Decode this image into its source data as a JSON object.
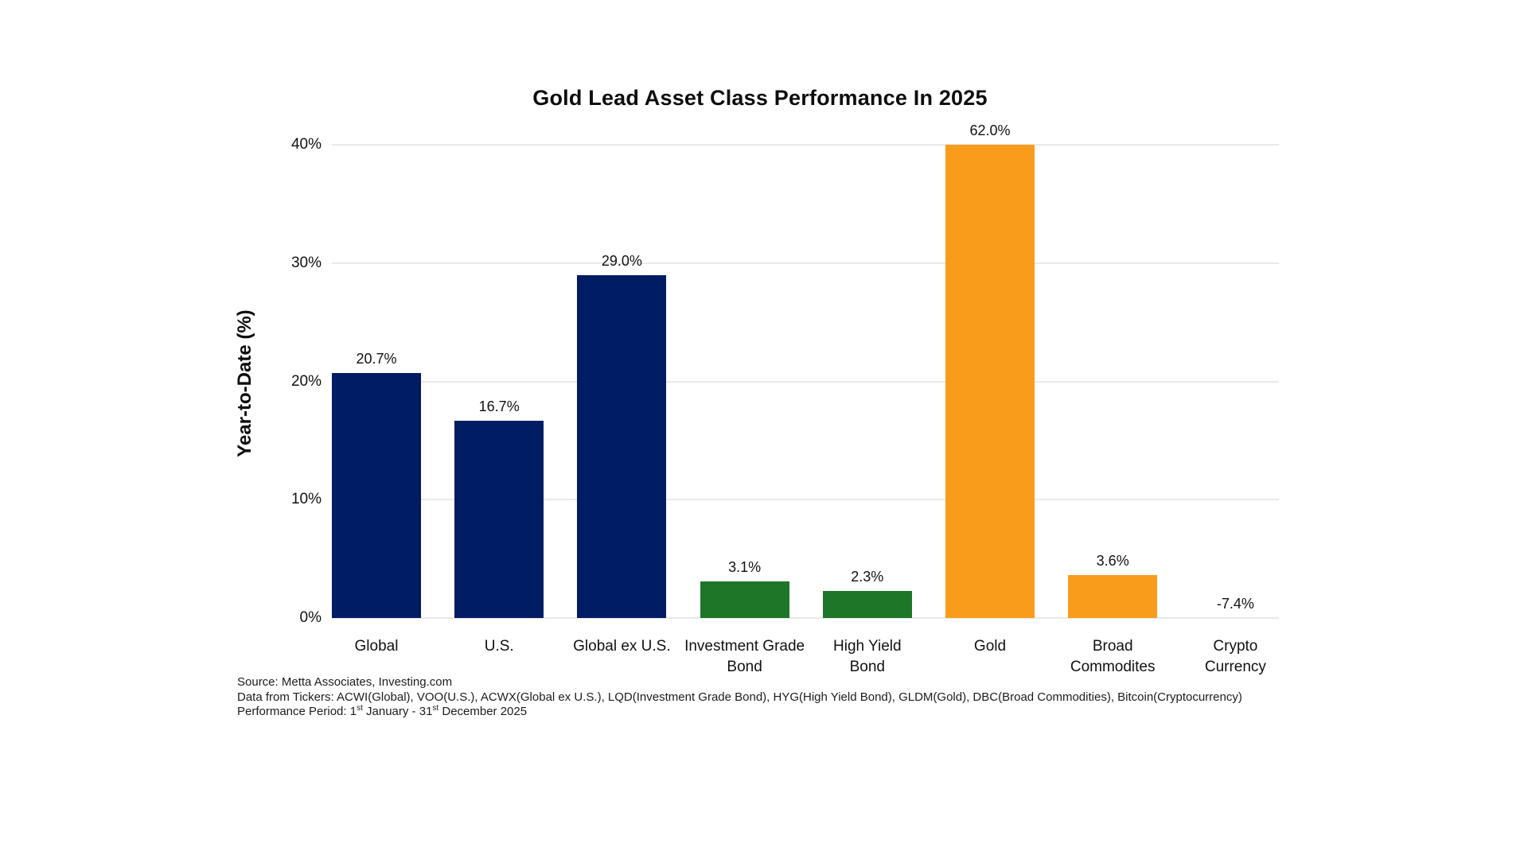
{
  "chart_data": {
    "type": "bar",
    "title": "Gold Lead Asset Class Performance In 2025",
    "xlabel": "",
    "ylabel": "Year-to-Date (%)",
    "ylim": [
      0,
      40
    ],
    "yticks": [
      0,
      10,
      20,
      30,
      40
    ],
    "ytick_labels": [
      "0%",
      "10%",
      "20%",
      "30%",
      "40%"
    ],
    "grid": true,
    "legend_position": "none",
    "categories": [
      "Global",
      "U.S.",
      "Global ex U.S.",
      "Investment Grade\nBond",
      "High Yield\nBond",
      "Gold",
      "Broad\nCommodites",
      "Crypto\nCurrency"
    ],
    "values": [
      20.7,
      16.7,
      29.0,
      3.1,
      2.3,
      62.0,
      3.6,
      -7.4
    ],
    "value_labels": [
      "20.7%",
      "16.7%",
      "29.0%",
      "3.1%",
      "2.3%",
      "62.0%",
      "3.6%",
      "-7.4%"
    ],
    "bar_colors": [
      "#001c63",
      "#001c63",
      "#001c63",
      "#1e7629",
      "#1e7629",
      "#fa9c1b",
      "#fa9c1b",
      "#fa9c1b"
    ],
    "clipped_note": "Gold bar clipped at 40% axis maximum; Crypto Currency negative bar not drawn below baseline"
  },
  "colors": {
    "navy": "#001c63",
    "green": "#1e7629",
    "orange": "#fa9c1b",
    "gridline": "#e9e9e9",
    "text": "#111111"
  },
  "footer": {
    "line1": "Source: Metta Associates, Investing.com",
    "line2": "Data from Tickers: ACWI(Global), VOO(U.S.), ACWX(Global ex U.S.), LQD(Investment Grade Bond), HYG(High Yield Bond), GLDM(Gold), DBC(Broad Commodities), Bitcoin(Cryptocurrency)",
    "line3": {
      "prefix": "Performance Period: 1",
      "sup1": "st",
      "mid": " January - 31",
      "sup2": "st",
      "suffix": " December 2025"
    }
  }
}
